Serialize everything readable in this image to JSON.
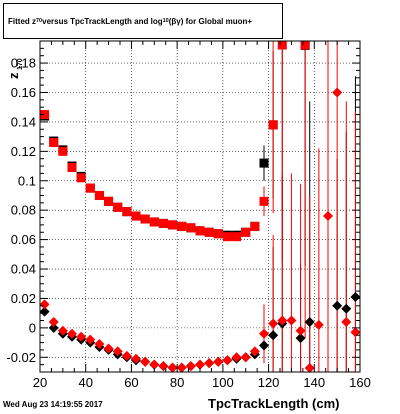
{
  "title": {
    "prefix": "Fitted  z",
    "sub1": "70",
    "mid": " versus TpcTrackLength and log",
    "sub2": "10",
    "suffix": "(βγ) for Global muon+"
  },
  "footer_text": "Wed Aug 23 14:19:55 2017",
  "chart_data": {
    "type": "scatter",
    "xlabel": "TpcTrackLength (cm)",
    "ylabel_main": "z",
    "ylabel_sub": "170",
    "xlim": [
      20,
      160
    ],
    "ylim": [
      -0.03,
      0.195
    ],
    "x_ticks": [
      20,
      40,
      60,
      80,
      100,
      120,
      140,
      160
    ],
    "y_ticks": [
      -0.02,
      0,
      0.02,
      0.04,
      0.06,
      0.08,
      0.1,
      0.12,
      0.14,
      0.16,
      0.18
    ],
    "grid": true,
    "series": [
      {
        "color": "#000000",
        "marker": "square",
        "points": [
          [
            22,
            0.144
          ],
          [
            26,
            0.127
          ],
          [
            30,
            0.121
          ],
          [
            34,
            0.11
          ],
          [
            38,
            0.103
          ],
          [
            42,
            0.095
          ],
          [
            46,
            0.09
          ],
          [
            50,
            0.086
          ],
          [
            54,
            0.082
          ],
          [
            58,
            0.079
          ],
          [
            62,
            0.076
          ],
          [
            66,
            0.074
          ],
          [
            70,
            0.072
          ],
          [
            74,
            0.071
          ],
          [
            78,
            0.07
          ],
          [
            82,
            0.069
          ],
          [
            86,
            0.068
          ],
          [
            90,
            0.066
          ],
          [
            94,
            0.065
          ],
          [
            98,
            0.064
          ],
          [
            102,
            0.063
          ],
          [
            106,
            0.063
          ],
          [
            110,
            0.065
          ],
          [
            114,
            0.069
          ],
          [
            118,
            0.112
          ],
          [
            122,
            0.138
          ],
          [
            126,
            0.2
          ],
          [
            136,
            0.192
          ]
        ],
        "errors": [
          [
            118,
            0.012
          ],
          [
            122,
            0.05
          ],
          [
            126,
            0.12
          ],
          [
            136,
            0.15
          ]
        ]
      },
      {
        "color": "#ff0000",
        "marker": "square",
        "points": [
          [
            22,
            0.145
          ],
          [
            26,
            0.126
          ],
          [
            30,
            0.12
          ],
          [
            34,
            0.109
          ],
          [
            38,
            0.102
          ],
          [
            42,
            0.095
          ],
          [
            46,
            0.09
          ],
          [
            50,
            0.086
          ],
          [
            54,
            0.082
          ],
          [
            58,
            0.079
          ],
          [
            62,
            0.076
          ],
          [
            66,
            0.074
          ],
          [
            70,
            0.072
          ],
          [
            74,
            0.071
          ],
          [
            78,
            0.07
          ],
          [
            82,
            0.069
          ],
          [
            86,
            0.068
          ],
          [
            90,
            0.066
          ],
          [
            94,
            0.065
          ],
          [
            98,
            0.064
          ],
          [
            102,
            0.062
          ],
          [
            106,
            0.062
          ],
          [
            110,
            0.065
          ],
          [
            114,
            0.069
          ],
          [
            118,
            0.086
          ],
          [
            122,
            0.138
          ],
          [
            126,
            0.195
          ],
          [
            136,
            0.193
          ]
        ],
        "errors": [
          [
            118,
            0.01
          ],
          [
            122,
            0.06
          ],
          [
            126,
            0.15
          ],
          [
            136,
            0.2
          ]
        ]
      },
      {
        "color": "#000000",
        "marker": "diamond",
        "points": [
          [
            22,
            0.011
          ],
          [
            26,
            0.0
          ],
          [
            30,
            -0.004
          ],
          [
            34,
            -0.006
          ],
          [
            38,
            -0.008
          ],
          [
            42,
            -0.01
          ],
          [
            46,
            -0.013
          ],
          [
            50,
            -0.015
          ],
          [
            54,
            -0.018
          ],
          [
            58,
            -0.02
          ],
          [
            62,
            -0.022
          ],
          [
            66,
            -0.023
          ],
          [
            70,
            -0.025
          ],
          [
            74,
            -0.026
          ],
          [
            78,
            -0.027
          ],
          [
            82,
            -0.027
          ],
          [
            86,
            -0.026
          ],
          [
            90,
            -0.025
          ],
          [
            94,
            -0.024
          ],
          [
            98,
            -0.023
          ],
          [
            102,
            -0.022
          ],
          [
            106,
            -0.021
          ],
          [
            110,
            -0.02
          ],
          [
            114,
            -0.018
          ],
          [
            118,
            -0.012
          ],
          [
            122,
            -0.005
          ],
          [
            126,
            0.003
          ],
          [
            134,
            -0.007
          ],
          [
            138,
            0.004
          ],
          [
            150,
            0.015
          ],
          [
            154,
            0.013
          ],
          [
            158,
            0.021
          ]
        ],
        "errors": [
          [
            118,
            0.01
          ],
          [
            122,
            0.06
          ],
          [
            126,
            0.1
          ],
          [
            134,
            0.05
          ],
          [
            138,
            0.15
          ],
          [
            150,
            0.1
          ],
          [
            154,
            0.12
          ],
          [
            158,
            0.15
          ]
        ]
      },
      {
        "color": "#ff0000",
        "marker": "diamond",
        "points": [
          [
            22,
            0.016
          ],
          [
            26,
            0.004
          ],
          [
            30,
            -0.002
          ],
          [
            34,
            -0.004
          ],
          [
            38,
            -0.006
          ],
          [
            42,
            -0.008
          ],
          [
            46,
            -0.011
          ],
          [
            50,
            -0.014
          ],
          [
            54,
            -0.016
          ],
          [
            58,
            -0.019
          ],
          [
            62,
            -0.021
          ],
          [
            66,
            -0.023
          ],
          [
            70,
            -0.025
          ],
          [
            74,
            -0.026
          ],
          [
            78,
            -0.027
          ],
          [
            82,
            -0.027
          ],
          [
            86,
            -0.026
          ],
          [
            90,
            -0.025
          ],
          [
            94,
            -0.024
          ],
          [
            98,
            -0.023
          ],
          [
            102,
            -0.022
          ],
          [
            106,
            -0.02
          ],
          [
            110,
            -0.02
          ],
          [
            114,
            -0.016
          ],
          [
            118,
            -0.004
          ],
          [
            122,
            0.003
          ],
          [
            126,
            0.005
          ],
          [
            130,
            0.005
          ],
          [
            134,
            -0.002
          ],
          [
            138,
            -0.03
          ],
          [
            142,
            0.002
          ],
          [
            146,
            0.076
          ],
          [
            150,
            0.16
          ],
          [
            154,
            0.004
          ],
          [
            158,
            -0.003
          ]
        ],
        "errors": [
          [
            118,
            0.02
          ],
          [
            122,
            0.06
          ],
          [
            126,
            0.1
          ],
          [
            130,
            0.1
          ],
          [
            134,
            0.1
          ],
          [
            138,
            0.12
          ],
          [
            142,
            0.12
          ],
          [
            146,
            0.18
          ],
          [
            150,
            0.2
          ],
          [
            154,
            0.15
          ],
          [
            158,
            0.15
          ]
        ]
      }
    ]
  }
}
